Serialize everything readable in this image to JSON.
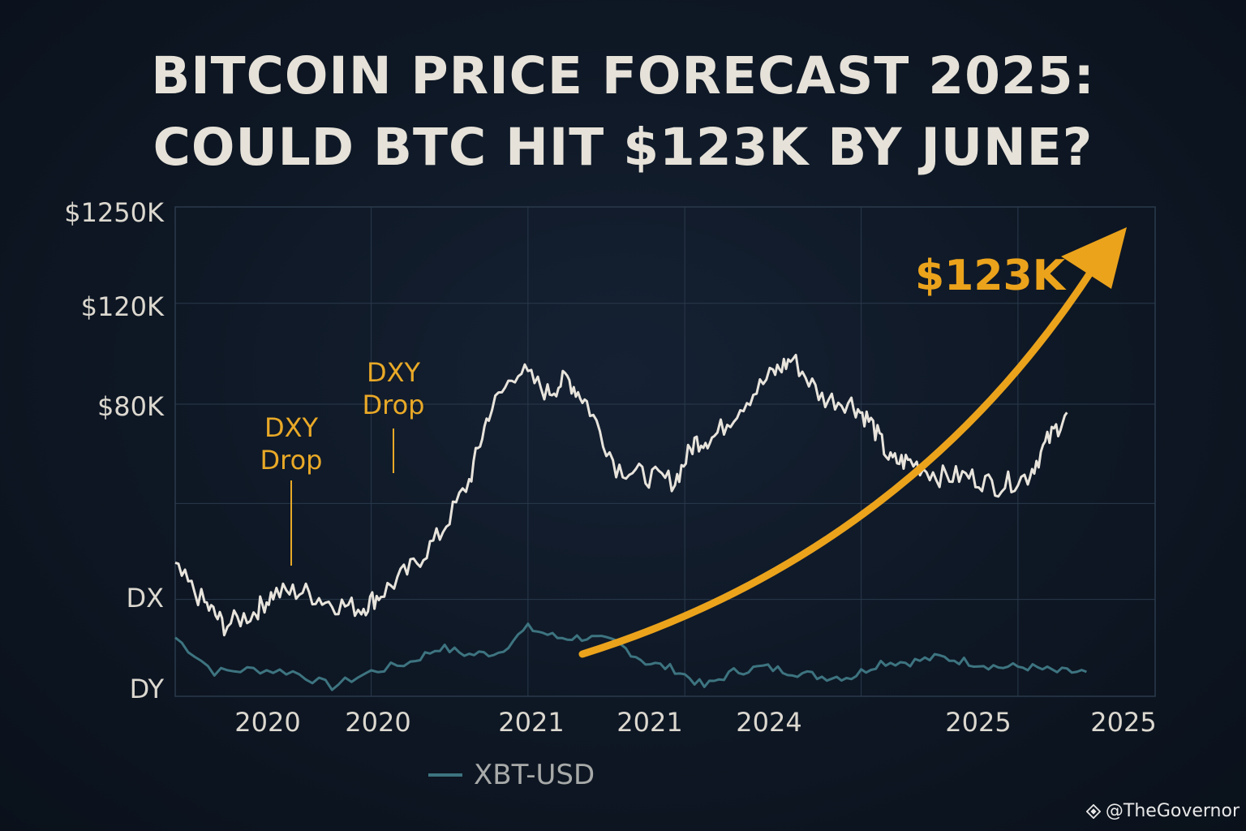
{
  "title_lines": [
    "BITCOIN PRICE FORECAST 2025:",
    "COULD BTC HIT $123K BY JUNE?"
  ],
  "watermark": "@TheGovernor",
  "colors": {
    "background": "#0e1724",
    "btc_line": "#e8e4dc",
    "dxy_line": "#3d7480",
    "forecast": "#eba31c",
    "annotation": "#e9a927",
    "grid": "#2a3a4c"
  },
  "icons": [
    "diamond-logo-icon"
  ],
  "chart_data": {
    "type": "line",
    "title": "BITCOIN PRICE FORECAST 2025: COULD BTC HIT $123K BY JUNE?",
    "y_tick_labels": [
      "$1250K",
      "$120K",
      "$80K",
      "DX",
      "DY"
    ],
    "x_tick_labels": [
      "2020",
      "2020",
      "2021",
      "2021",
      "2024",
      "2025",
      "2025"
    ],
    "grid": true,
    "legend": {
      "position": "bottom",
      "entries": [
        "XBT-USD"
      ]
    },
    "series": [
      {
        "role": "price",
        "style": "light jagged line",
        "points": [
          [
            0.0,
            0.26
          ],
          [
            0.03,
            0.19
          ],
          [
            0.05,
            0.145
          ],
          [
            0.08,
            0.17
          ],
          [
            0.1,
            0.21
          ],
          [
            0.13,
            0.215
          ],
          [
            0.16,
            0.19
          ],
          [
            0.19,
            0.18
          ],
          [
            0.21,
            0.21
          ],
          [
            0.24,
            0.26
          ],
          [
            0.27,
            0.33
          ],
          [
            0.3,
            0.44
          ],
          [
            0.32,
            0.58
          ],
          [
            0.35,
            0.67
          ],
          [
            0.38,
            0.62
          ],
          [
            0.4,
            0.65
          ],
          [
            0.42,
            0.6
          ],
          [
            0.45,
            0.47
          ],
          [
            0.48,
            0.45
          ],
          [
            0.51,
            0.44
          ],
          [
            0.53,
            0.52
          ],
          [
            0.55,
            0.53
          ],
          [
            0.58,
            0.6
          ],
          [
            0.61,
            0.66
          ],
          [
            0.63,
            0.69
          ],
          [
            0.66,
            0.61
          ],
          [
            0.69,
            0.6
          ],
          [
            0.71,
            0.56
          ],
          [
            0.73,
            0.48
          ],
          [
            0.75,
            0.48
          ],
          [
            0.78,
            0.45
          ],
          [
            0.81,
            0.45
          ],
          [
            0.84,
            0.43
          ],
          [
            0.87,
            0.45
          ],
          [
            0.89,
            0.52
          ],
          [
            0.91,
            0.58
          ]
        ]
      },
      {
        "role": "dxy",
        "name": "XBT-USD",
        "style": "teal line",
        "points": [
          [
            0.0,
            0.12
          ],
          [
            0.04,
            0.05
          ],
          [
            0.08,
            0.055
          ],
          [
            0.12,
            0.05
          ],
          [
            0.16,
            0.02
          ],
          [
            0.2,
            0.05
          ],
          [
            0.24,
            0.07
          ],
          [
            0.27,
            0.1
          ],
          [
            0.3,
            0.085
          ],
          [
            0.33,
            0.09
          ],
          [
            0.36,
            0.14
          ],
          [
            0.39,
            0.12
          ],
          [
            0.42,
            0.12
          ],
          [
            0.45,
            0.11
          ],
          [
            0.48,
            0.07
          ],
          [
            0.51,
            0.055
          ],
          [
            0.54,
            0.02
          ],
          [
            0.57,
            0.05
          ],
          [
            0.6,
            0.06
          ],
          [
            0.63,
            0.05
          ],
          [
            0.66,
            0.04
          ],
          [
            0.69,
            0.04
          ],
          [
            0.72,
            0.07
          ],
          [
            0.75,
            0.07
          ],
          [
            0.78,
            0.08
          ],
          [
            0.81,
            0.07
          ],
          [
            0.84,
            0.06
          ],
          [
            0.87,
            0.06
          ],
          [
            0.9,
            0.05
          ],
          [
            0.93,
            0.05
          ]
        ]
      }
    ],
    "forecast": {
      "label": "$123K",
      "style": "curved arrow"
    },
    "annotations": [
      {
        "label_lines": [
          "DXY",
          "Drop"
        ]
      },
      {
        "label_lines": [
          "DXY",
          "Drop"
        ]
      }
    ]
  }
}
